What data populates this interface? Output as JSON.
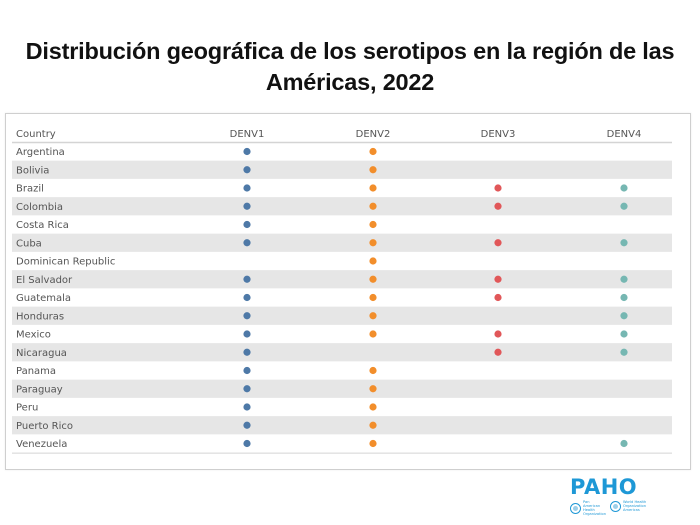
{
  "title": {
    "line1": "Distribución geográfica de los serotipos en la región de las",
    "line2": "Américas, 2022"
  },
  "chart_data": {
    "type": "table",
    "title": "Distribución geográfica de los serotipos en la región de las Américas, 2022",
    "row_header": "Country",
    "columns": [
      "DENV1",
      "DENV2",
      "DENV3",
      "DENV4"
    ],
    "column_colors": {
      "DENV1": "#4e79a7",
      "DENV2": "#f28e2b",
      "DENV3": "#e15759",
      "DENV4": "#76b7b2"
    },
    "rows": [
      {
        "country": "Argentina",
        "DENV1": true,
        "DENV2": true,
        "DENV3": false,
        "DENV4": false
      },
      {
        "country": "Bolivia",
        "DENV1": true,
        "DENV2": true,
        "DENV3": false,
        "DENV4": false
      },
      {
        "country": "Brazil",
        "DENV1": true,
        "DENV2": true,
        "DENV3": true,
        "DENV4": true
      },
      {
        "country": "Colombia",
        "DENV1": true,
        "DENV2": true,
        "DENV3": true,
        "DENV4": true
      },
      {
        "country": "Costa Rica",
        "DENV1": true,
        "DENV2": true,
        "DENV3": false,
        "DENV4": false
      },
      {
        "country": "Cuba",
        "DENV1": true,
        "DENV2": true,
        "DENV3": true,
        "DENV4": true
      },
      {
        "country": "Dominican Republic",
        "DENV1": false,
        "DENV2": true,
        "DENV3": false,
        "DENV4": false
      },
      {
        "country": "El Salvador",
        "DENV1": true,
        "DENV2": true,
        "DENV3": true,
        "DENV4": true
      },
      {
        "country": "Guatemala",
        "DENV1": true,
        "DENV2": true,
        "DENV3": true,
        "DENV4": true
      },
      {
        "country": "Honduras",
        "DENV1": true,
        "DENV2": true,
        "DENV3": false,
        "DENV4": true
      },
      {
        "country": "Mexico",
        "DENV1": true,
        "DENV2": true,
        "DENV3": true,
        "DENV4": true
      },
      {
        "country": "Nicaragua",
        "DENV1": true,
        "DENV2": false,
        "DENV3": true,
        "DENV4": true
      },
      {
        "country": "Panama",
        "DENV1": true,
        "DENV2": true,
        "DENV3": false,
        "DENV4": false
      },
      {
        "country": "Paraguay",
        "DENV1": true,
        "DENV2": true,
        "DENV3": false,
        "DENV4": false
      },
      {
        "country": "Peru",
        "DENV1": true,
        "DENV2": true,
        "DENV3": false,
        "DENV4": false
      },
      {
        "country": "Puerto Rico",
        "DENV1": true,
        "DENV2": true,
        "DENV3": false,
        "DENV4": false
      },
      {
        "country": "Venezuela",
        "DENV1": true,
        "DENV2": true,
        "DENV3": false,
        "DENV4": true
      }
    ],
    "stripe_color": "#e6e6e6"
  },
  "logo": {
    "wordmark": "PAHO",
    "left_org": "Pan American Health Organization",
    "right_org": "World Health Organization Americas"
  }
}
